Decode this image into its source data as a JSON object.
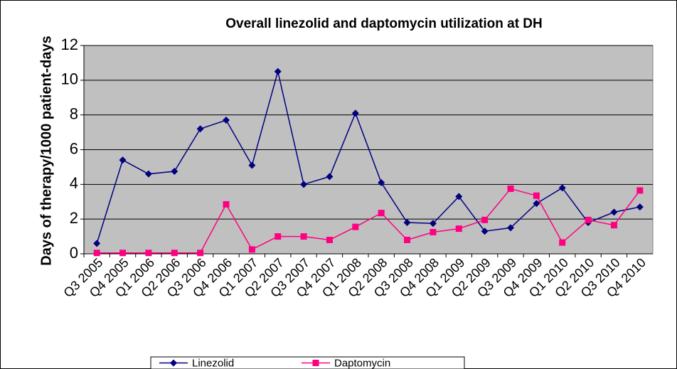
{
  "chart_data": {
    "type": "line",
    "title": "Overall linezolid and daptomycin utilization at DH",
    "y_label": "Days of therapy/1000 patient-days",
    "categories": [
      "Q3 2005",
      "Q4 2005",
      "Q1 2006",
      "Q2 2006",
      "Q3 2006",
      "Q4 2006",
      "Q1 2007",
      "Q2 2007",
      "Q3 2007",
      "Q4 2007",
      "Q1 2008",
      "Q2 2008",
      "Q3 2008",
      "Q4 2008",
      "Q1 2009",
      "Q2 2009",
      "Q3 2009",
      "Q4 2009",
      "Q1 2010",
      "Q2 2010",
      "Q3 2010",
      "Q4 2010"
    ],
    "series": [
      {
        "name": "Linezolid",
        "color": "#000080",
        "marker": "diamond",
        "values": [
          0.6,
          5.4,
          4.6,
          4.75,
          7.2,
          7.7,
          5.1,
          10.5,
          4.0,
          4.45,
          8.1,
          4.1,
          1.8,
          1.75,
          3.3,
          1.3,
          1.5,
          2.9,
          3.8,
          1.8,
          2.4,
          2.7
        ]
      },
      {
        "name": "Daptomycin",
        "color": "#ff0080",
        "marker": "square",
        "values": [
          0.05,
          0.05,
          0.05,
          0.05,
          0.05,
          2.85,
          0.25,
          1.0,
          1.0,
          0.8,
          1.55,
          2.35,
          0.8,
          1.25,
          1.45,
          1.95,
          3.75,
          3.35,
          0.65,
          1.95,
          1.65,
          3.65
        ]
      }
    ],
    "ylim": [
      0,
      12
    ],
    "yticks": [
      0,
      2,
      4,
      6,
      8,
      10,
      12
    ],
    "grid": true,
    "legend": "bottom"
  }
}
